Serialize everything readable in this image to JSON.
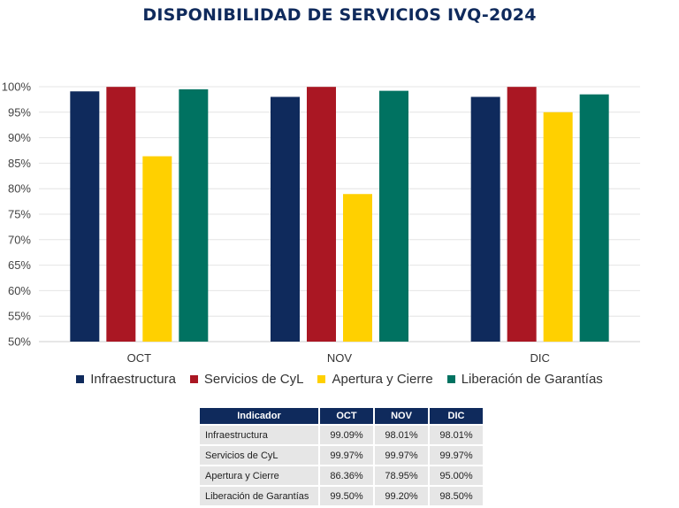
{
  "title": "DISPONIBILIDAD DE SERVICIOS IVQ-2024",
  "chart_data": {
    "type": "bar",
    "title": "DISPONIBILIDAD DE SERVICIOS IVQ-2024",
    "categories": [
      "OCT",
      "NOV",
      "DIC"
    ],
    "series": [
      {
        "name": "Infraestructura",
        "color": "#0f2a5c",
        "values": [
          99.09,
          98.01,
          98.01
        ]
      },
      {
        "name": "Servicios de CyL",
        "color": "#aa1723",
        "values": [
          99.97,
          99.97,
          99.97
        ]
      },
      {
        "name": "Apertura y Cierre",
        "color": "#ffd000",
        "values": [
          86.36,
          78.95,
          95.0
        ]
      },
      {
        "name": "Liberación de Garantías",
        "color": "#007261",
        "values": [
          99.5,
          99.2,
          98.5
        ]
      }
    ],
    "ylim": [
      50,
      100
    ],
    "yticks": [
      "50%",
      "55%",
      "60%",
      "65%",
      "70%",
      "75%",
      "80%",
      "85%",
      "90%",
      "95%",
      "100%"
    ],
    "grid": true,
    "legend": "bottom"
  },
  "table": {
    "headers": [
      "Indicador",
      "OCT",
      "NOV",
      "DIC"
    ],
    "rows": [
      [
        "Infraestructura",
        "99.09%",
        "98.01%",
        "98.01%"
      ],
      [
        "Servicios de CyL",
        "99.97%",
        "99.97%",
        "99.97%"
      ],
      [
        "Apertura y Cierre",
        "86.36%",
        "78.95%",
        "95.00%"
      ],
      [
        "Liberación de Garantías",
        "99.50%",
        "99.20%",
        "98.50%"
      ]
    ]
  }
}
